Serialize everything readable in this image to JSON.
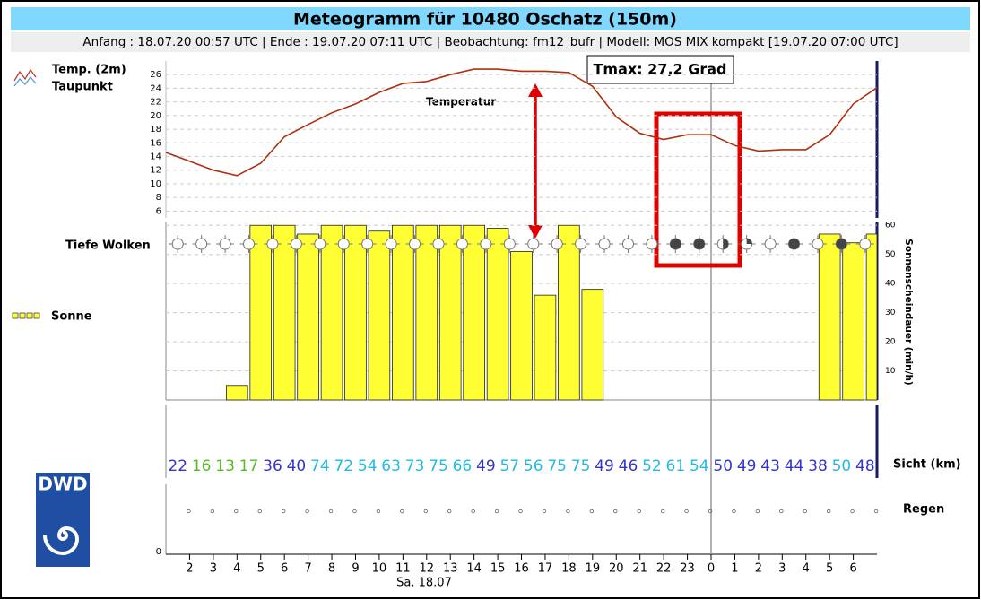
{
  "header": {
    "title": "Meteogramm für 10480 Oschatz (150m)",
    "subtitle": "Anfang : 18.07.20 00:57 UTC | Ende : 19.07.20 07:11 UTC | Beobachtung: fm12_bufr | Modell: MOS MIX kompakt [19.07.20 07:00 UTC]"
  },
  "logo": {
    "text": "DWD"
  },
  "x_axis": {
    "categories": [
      null,
      "2",
      "3",
      "4",
      "5",
      "6",
      "7",
      "8",
      "9",
      "10",
      "11",
      "12",
      "13",
      "14",
      "15",
      "16",
      "17",
      "18",
      "19",
      "20",
      "21",
      "22",
      "23",
      "0",
      "1",
      "2",
      "3",
      "4",
      "5",
      "6",
      null
    ],
    "date_label": "Sa. 18.07"
  },
  "chart_data": [
    {
      "type": "line",
      "series": [
        {
          "name": "Temp. (2m)",
          "color": "#b0300e",
          "values": [
            14.6,
            13.3,
            12.0,
            11.2,
            13.0,
            16.9,
            18.7,
            20.4,
            21.7,
            23.4,
            24.7,
            25.0,
            26.0,
            26.8,
            26.8,
            26.5,
            26.5,
            26.3,
            24.3,
            19.8,
            17.4,
            16.5,
            17.2,
            17.2,
            15.6,
            14.8,
            15.0,
            15.0,
            17.2,
            21.7,
            24.1
          ]
        }
      ],
      "legend_note": "Taupunkt",
      "ylim": [
        5,
        28
      ],
      "yticks": [
        6,
        8,
        10,
        12,
        14,
        16,
        18,
        20,
        22,
        24,
        26
      ],
      "grid": true,
      "annotations": [
        "Temperatur",
        "Tmax: 27,2 Grad"
      ]
    },
    {
      "type": "bar",
      "series": [
        {
          "name": "Sonne",
          "color": "#ffff33",
          "axis": "y2",
          "values": [
            0,
            0,
            0,
            5,
            60,
            60,
            57,
            60,
            60,
            58,
            60,
            60,
            60,
            60,
            59,
            51,
            36,
            60,
            38,
            0,
            0,
            0,
            0,
            0,
            0,
            0,
            0,
            0,
            57,
            54,
            57
          ]
        }
      ],
      "y2label": "Sonnenscheindauer (min/h)",
      "y2lim": [
        0,
        61
      ],
      "y2ticks": [
        10,
        20,
        30,
        40,
        50,
        60
      ],
      "grid": true
    },
    {
      "type": "cloud-symbols",
      "label": "Tiefe Wolken",
      "values": [
        0,
        0,
        0,
        0,
        0,
        0,
        0,
        0,
        0,
        0,
        0,
        0,
        0,
        0,
        0,
        0,
        0,
        0,
        0,
        0,
        0,
        8,
        8,
        4,
        2,
        0,
        8,
        0,
        8,
        0
      ]
    },
    {
      "type": "text-row",
      "label": "Sicht (km)",
      "values": [
        22,
        16,
        13,
        17,
        36,
        40,
        74,
        72,
        54,
        63,
        73,
        75,
        66,
        49,
        57,
        56,
        75,
        75,
        49,
        46,
        52,
        61,
        54,
        50,
        49,
        43,
        44,
        38,
        50,
        48
      ],
      "colors": [
        "#3333cc",
        "#55bb22",
        "#55bb22",
        "#55bb22",
        "#3333cc",
        "#3333cc",
        "#22bbdd",
        "#22bbdd",
        "#22bbdd",
        "#22bbdd",
        "#22bbdd",
        "#22bbdd",
        "#22bbdd",
        "#3333cc",
        "#22bbdd",
        "#22bbdd",
        "#22bbdd",
        "#22bbdd",
        "#3333cc",
        "#3333cc",
        "#22bbdd",
        "#22bbdd",
        "#22bbdd",
        "#3333cc",
        "#3333cc",
        "#3333cc",
        "#3333cc",
        "#3333cc",
        "#22bbdd",
        "#3333cc"
      ]
    },
    {
      "type": "rain-symbols",
      "label": "Regen",
      "values": [
        0,
        0,
        0,
        0,
        0,
        0,
        0,
        0,
        0,
        0,
        0,
        0,
        0,
        0,
        0,
        0,
        0,
        0,
        0,
        0,
        0,
        0,
        0,
        0,
        0,
        0,
        0,
        0,
        0,
        0
      ],
      "yticks": [
        0
      ]
    }
  ]
}
